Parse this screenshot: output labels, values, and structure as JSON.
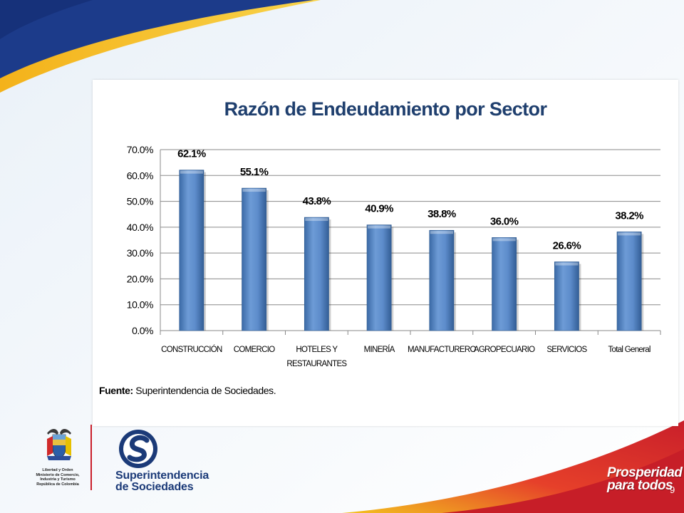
{
  "chart_data": {
    "type": "bar",
    "title": "Razón de Endeudamiento  por Sector",
    "categories": [
      "CONSTRUCCIÓN",
      "COMERCIO",
      "HOTELES Y RESTAURANTES",
      "MINERÍA",
      "MANUFACTURERO",
      "AGROPECUARIO",
      "SERVICIOS",
      "Total General"
    ],
    "category_lines": [
      [
        "CONSTRUCCIÓN"
      ],
      [
        "COMERCIO"
      ],
      [
        "HOTELES Y",
        "RESTAURANTES"
      ],
      [
        "MINERÍA"
      ],
      [
        "MANUFACTURERO"
      ],
      [
        "AGROPECUARIO"
      ],
      [
        "SERVICIOS"
      ],
      [
        "Total General"
      ]
    ],
    "values": [
      62.1,
      55.1,
      43.8,
      40.9,
      38.8,
      36.0,
      26.6,
      38.2
    ],
    "data_labels": [
      "62.1%",
      "55.1%",
      "43.8%",
      "40.9%",
      "38.8%",
      "36.0%",
      "26.6%",
      "38.2%"
    ],
    "y_ticks": [
      0,
      10,
      20,
      30,
      40,
      50,
      60,
      70
    ],
    "y_tick_labels": [
      "0.0%",
      "10.0%",
      "20.0%",
      "30.0%",
      "40.0%",
      "50.0%",
      "60.0%",
      "70.0%"
    ],
    "ylim": [
      0,
      70
    ],
    "xlabel": "",
    "ylabel": "",
    "grid": true,
    "legend": "none",
    "bar_color": "#4f81bd"
  },
  "source": {
    "label": "Fuente:",
    "text": " Superintendencia de Sociedades."
  },
  "coat_of_arms": {
    "lines": [
      "Libertad y Orden",
      "Ministerio de Comercio,",
      "Industria y Turismo",
      "República de Colombia"
    ]
  },
  "supersociedades": {
    "line1": "Superintendencia",
    "line2": "de Sociedades"
  },
  "prosperidad": {
    "line1": "Prosperidad",
    "line2": "para todos"
  },
  "page_number": "9",
  "colors": {
    "navy": "#1c3b8a",
    "gold": "#f2b51a",
    "red": "#d9252c",
    "title_blue": "#1f3f6e"
  }
}
